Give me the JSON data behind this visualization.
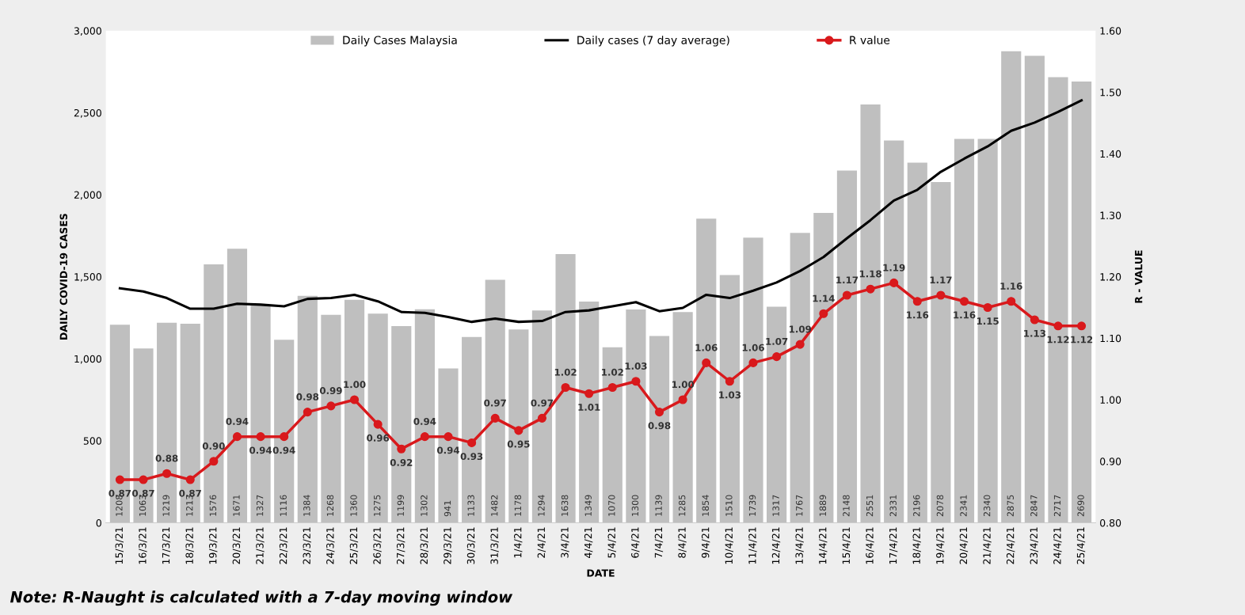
{
  "chart_data": {
    "type": "bar",
    "xlabel": "DATE",
    "ylabel": "DAILY COVID-19 CASES",
    "y2label": "R - VALUE",
    "categories": [
      "15/3/21",
      "16/3/21",
      "17/3/21",
      "18/3/21",
      "19/3/21",
      "20/3/21",
      "21/3/21",
      "22/3/21",
      "23/3/21",
      "24/3/21",
      "25/3/21",
      "26/3/21",
      "27/3/21",
      "28/3/21",
      "29/3/21",
      "30/3/21",
      "31/3/21",
      "1/4/21",
      "2/4/21",
      "3/4/21",
      "4/4/21",
      "5/4/21",
      "6/4/21",
      "7/4/21",
      "8/4/21",
      "9/4/21",
      "10/4/21",
      "11/4/21",
      "12/4/21",
      "13/4/21",
      "14/4/21",
      "15/4/21",
      "16/4/21",
      "17/4/21",
      "18/4/21",
      "19/4/21",
      "20/4/21",
      "21/4/21",
      "22/4/21",
      "23/4/21",
      "24/4/21",
      "25/4/21"
    ],
    "series": [
      {
        "name": "Daily Cases Malaysia",
        "color": "#bfbfbf",
        "data_labels": true,
        "values": [
          1208,
          1063,
          1219,
          1213,
          1576,
          1671,
          1327,
          1116,
          1384,
          1268,
          1360,
          1275,
          1199,
          1302,
          941,
          1133,
          1482,
          1178,
          1294,
          1638,
          1349,
          1070,
          1300,
          1139,
          1285,
          1854,
          1510,
          1739,
          1317,
          1767,
          1889,
          2148,
          2551,
          2331,
          2196,
          2078,
          2341,
          2340,
          2875,
          2847,
          2717,
          2690
        ]
      },
      {
        "name": "Daily cases (7 day average)",
        "type": "line",
        "color": "#000000",
        "marker": "none",
        "values": [
          1430,
          1410,
          1370,
          1305,
          1305,
          1335,
          1330,
          1320,
          1365,
          1370,
          1390,
          1350,
          1285,
          1280,
          1255,
          1225,
          1245,
          1225,
          1230,
          1285,
          1295,
          1320,
          1345,
          1290,
          1310,
          1390,
          1370,
          1415,
          1465,
          1535,
          1620,
          1735,
          1845,
          1965,
          2030,
          2140,
          2220,
          2295,
          2390,
          2440,
          2505,
          2575
        ]
      },
      {
        "name": "R value",
        "type": "line",
        "axis": "y2",
        "color": "#d9191c",
        "marker": "circle",
        "values": [
          0.87,
          0.87,
          0.88,
          0.87,
          0.9,
          0.94,
          0.94,
          0.94,
          0.98,
          0.99,
          1.0,
          0.96,
          0.92,
          0.94,
          0.94,
          0.93,
          0.97,
          0.95,
          0.97,
          1.02,
          1.01,
          1.02,
          1.03,
          0.98,
          1.0,
          1.06,
          1.03,
          1.06,
          1.07,
          1.09,
          1.14,
          1.17,
          1.18,
          1.19,
          1.16,
          1.17,
          1.16,
          1.15,
          1.16,
          1.13,
          1.12,
          1.12
        ],
        "value_labels": [
          "0.87",
          "0.87",
          "0.88",
          "0.87",
          "0.90",
          "0.94",
          "0.94",
          "0.94",
          "0.98",
          "0.99",
          "1.00",
          "0.96",
          "0.92",
          "0.94",
          "0.94",
          "0.93",
          "0.97",
          "0.95",
          "0.97",
          "1.02",
          "1.01",
          "1.02",
          "1.03",
          "0.98",
          "1.00",
          "1.06",
          "1.03",
          "1.06",
          "1.07",
          "1.09",
          "1.14",
          "1.17",
          "1.18",
          "1.19",
          "1.16",
          "1.17",
          "1.16",
          "1.15",
          "1.16",
          "1.13",
          "1.12",
          "1.12"
        ]
      }
    ],
    "ylim": [
      0,
      3000
    ],
    "yticks": [
      0,
      {
        "value": 500,
        "label": "500"
      },
      {
        "value": 1000,
        "label": "1,000"
      },
      {
        "value": 1500,
        "label": "1,500"
      },
      {
        "value": 2000,
        "label": "2,000"
      },
      {
        "value": 2500,
        "label": "2,500"
      },
      {
        "value": 3000,
        "label": "3,000"
      }
    ],
    "y2lim": [
      0.8,
      1.6
    ],
    "y2ticks": [
      {
        "value": 0.8,
        "label": "0.80"
      },
      {
        "value": 0.9,
        "label": "0.90"
      },
      {
        "value": 1.0,
        "label": "1.00"
      },
      {
        "value": 1.1,
        "label": "1.10"
      },
      {
        "value": 1.2,
        "label": "1.20"
      },
      {
        "value": 1.3,
        "label": "1.30"
      },
      {
        "value": 1.4,
        "label": "1.40"
      },
      {
        "value": 1.5,
        "label": "1.50"
      },
      {
        "value": 1.6,
        "label": "1.60"
      }
    ],
    "legend": "top",
    "grid": false,
    "annotations": [
      "Note: R-Naught is calculated with a 7-day moving window"
    ]
  }
}
